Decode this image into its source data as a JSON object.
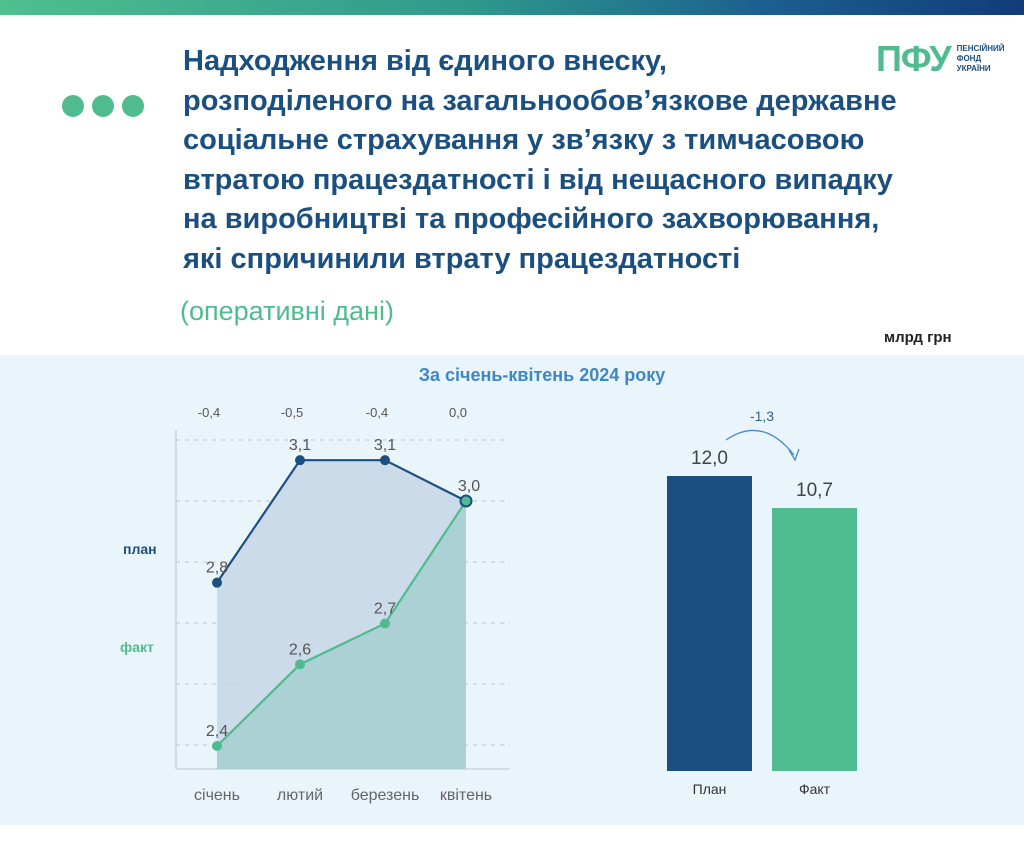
{
  "header": {
    "title_lines": [
      "Надходження від єдиного внеску,",
      "розподіленого на загальнообов’язкове державне",
      "соціальне страхування у зв’язку з тимчасовою",
      "втратою працездатності і від нещасного випадку",
      "на виробництві та професійного захворювання,",
      "які спричинили втрату працездатності"
    ],
    "subtitle": "(оперативні дані)",
    "units": "млрд грн",
    "logo": {
      "mark": "ПФУ",
      "lines": [
        "ПЕНСІЙНИЙ",
        "ФОНД",
        "УКРАЇНИ"
      ]
    }
  },
  "colors": {
    "plan": "#1b4f80",
    "fact": "#4fbb8e",
    "accent_blue": "#3f86c6"
  },
  "chart_data": [
    {
      "type": "line",
      "title": "За січень-квітень 2024 року",
      "categories": [
        "січень",
        "лютий",
        "березень",
        "квітень"
      ],
      "series": [
        {
          "name": "план",
          "values": [
            2.8,
            3.1,
            3.1,
            3.0
          ],
          "labels": [
            "2,8",
            "3,1",
            "3,1",
            "3,0"
          ]
        },
        {
          "name": "факт",
          "values": [
            2.4,
            2.6,
            2.7,
            3.0
          ],
          "labels": [
            "2,4",
            "2,6",
            "2,7",
            ""
          ]
        }
      ],
      "differences": [
        "-0,4",
        "-0,5",
        "-0,4",
        "0,0"
      ],
      "grid": true
    },
    {
      "type": "bar",
      "categories": [
        "План",
        "Факт"
      ],
      "values": [
        12.0,
        10.7
      ],
      "labels": [
        "12,0",
        "10,7"
      ],
      "difference": "-1,3"
    }
  ]
}
